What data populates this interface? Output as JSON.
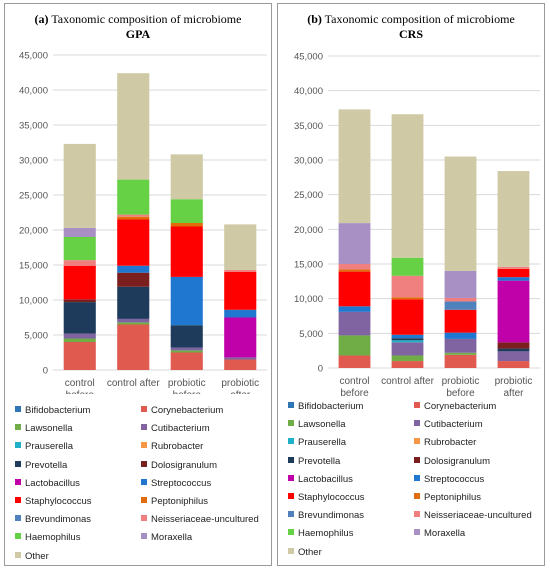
{
  "legend": [
    {
      "name": "Bifidobacterium",
      "color": "#2e75b6"
    },
    {
      "name": "Corynebacterium",
      "color": "#e05a4f"
    },
    {
      "name": "Lawsonella",
      "color": "#70ad47"
    },
    {
      "name": "Cutibacterium",
      "color": "#8064a2"
    },
    {
      "name": "Prauserella",
      "color": "#1fb0c9"
    },
    {
      "name": "Rubrobacter",
      "color": "#f79646"
    },
    {
      "name": "Prevotella",
      "color": "#1f3b5c"
    },
    {
      "name": "Dolosigranulum",
      "color": "#7b1e1e"
    },
    {
      "name": "Lactobacillus",
      "color": "#c000a8"
    },
    {
      "name": "Streptococcus",
      "color": "#1f77d0"
    },
    {
      "name": "Staphylococcus",
      "color": "#ff0000"
    },
    {
      "name": "Peptoniphilus",
      "color": "#e26b0a"
    },
    {
      "name": "Brevundimonas",
      "color": "#4f81bd"
    },
    {
      "name": "Neisseriaceae-uncultured",
      "color": "#f08080"
    },
    {
      "name": "Haemophilus",
      "color": "#66d144"
    },
    {
      "name": "Moraxella",
      "color": "#a990c4"
    },
    {
      "name": "Other",
      "color": "#cfc9a5"
    }
  ],
  "panels": [
    {
      "title_prefix": "(a)",
      "title_rest": " Taxonomic composition of microbiome",
      "subtitle": "GPA",
      "chart_data": {
        "type": "bar",
        "stacked": true,
        "categories": [
          [
            "control",
            "before"
          ],
          [
            "control after"
          ],
          [
            "probiotic",
            "before"
          ],
          [
            "probiotic",
            "after"
          ]
        ],
        "ylim": [
          0,
          45000
        ],
        "yticks": [
          "0",
          "5,000",
          "10,000",
          "15,000",
          "20,000",
          "25,000",
          "30,000",
          "35,000",
          "40,000",
          "45,000"
        ],
        "ytick_values": [
          0,
          5000,
          10000,
          15000,
          20000,
          25000,
          30000,
          35000,
          40000,
          45000
        ],
        "grid": true,
        "series": [
          {
            "name": "Bifidobacterium",
            "values": [
              0,
              0,
              0,
              0
            ]
          },
          {
            "name": "Corynebacterium",
            "values": [
              4000,
              6500,
              2500,
              1500
            ]
          },
          {
            "name": "Lawsonella",
            "values": [
              500,
              300,
              300,
              0
            ]
          },
          {
            "name": "Cutibacterium",
            "values": [
              700,
              500,
              400,
              300
            ]
          },
          {
            "name": "Prauserella",
            "values": [
              0,
              0,
              0,
              0
            ]
          },
          {
            "name": "Rubrobacter",
            "values": [
              0,
              0,
              0,
              0
            ]
          },
          {
            "name": "Prevotella",
            "values": [
              4500,
              4600,
              3200,
              0
            ]
          },
          {
            "name": "Dolosigranulum",
            "values": [
              400,
              2000,
              0,
              0
            ]
          },
          {
            "name": "Lactobacillus",
            "values": [
              0,
              0,
              0,
              5700
            ]
          },
          {
            "name": "Streptococcus",
            "values": [
              0,
              1000,
              6900,
              1100
            ]
          },
          {
            "name": "Staphylococcus",
            "values": [
              4800,
              6600,
              7200,
              5400
            ]
          },
          {
            "name": "Peptoniphilus",
            "values": [
              0,
              400,
              500,
              0
            ]
          },
          {
            "name": "Brevundimonas",
            "values": [
              0,
              0,
              0,
              0
            ]
          },
          {
            "name": "Neisseriaceae-uncultured",
            "values": [
              800,
              300,
              0,
              300
            ]
          },
          {
            "name": "Haemophilus",
            "values": [
              3300,
              5000,
              3400,
              0
            ]
          },
          {
            "name": "Moraxella",
            "values": [
              1300,
              0,
              0,
              0
            ]
          },
          {
            "name": "Other",
            "values": [
              12000,
              15200,
              6400,
              6500
            ]
          }
        ],
        "extra": [
          {
            "category": 3,
            "series": "Light pink base",
            "note": ""
          }
        ]
      }
    },
    {
      "title_prefix": "(b)",
      "title_rest": " Taxonomic composition of microbiome",
      "subtitle": "CRS",
      "chart_data": {
        "type": "bar",
        "stacked": true,
        "categories": [
          [
            "control",
            "before"
          ],
          [
            "control after"
          ],
          [
            "probiotic",
            "before"
          ],
          [
            "probiotic",
            "after"
          ]
        ],
        "ylim": [
          0,
          45000
        ],
        "yticks": [
          "0",
          "5,000",
          "10,000",
          "15,000",
          "20,000",
          "25,000",
          "30,000",
          "35,000",
          "40,000",
          "45,000"
        ],
        "ytick_values": [
          0,
          5000,
          10000,
          15000,
          20000,
          25000,
          30000,
          35000,
          40000,
          45000
        ],
        "grid": true,
        "series": [
          {
            "name": "Bifidobacterium",
            "values": [
              0,
              0,
              0,
              0
            ]
          },
          {
            "name": "Corynebacterium",
            "values": [
              1800,
              1000,
              1900,
              1000
            ]
          },
          {
            "name": "Lawsonella",
            "values": [
              2900,
              800,
              300,
              0
            ]
          },
          {
            "name": "Cutibacterium",
            "values": [
              3400,
              1900,
              2000,
              1400
            ]
          },
          {
            "name": "Prauserella",
            "values": [
              0,
              300,
              0,
              0
            ]
          },
          {
            "name": "Rubrobacter",
            "values": [
              0,
              0,
              0,
              0
            ]
          },
          {
            "name": "Prevotella",
            "values": [
              0,
              300,
              0,
              400
            ]
          },
          {
            "name": "Dolosigranulum",
            "values": [
              0,
              0,
              0,
              900
            ]
          },
          {
            "name": "Lactobacillus",
            "values": [
              0,
              0,
              0,
              8900
            ]
          },
          {
            "name": "Streptococcus",
            "values": [
              800,
              500,
              900,
              500
            ]
          },
          {
            "name": "Staphylococcus",
            "values": [
              5000,
              5100,
              3300,
              1200
            ]
          },
          {
            "name": "Peptoniphilus",
            "values": [
              300,
              300,
              0,
              0
            ]
          },
          {
            "name": "Brevundimonas",
            "values": [
              0,
              0,
              1200,
              0
            ]
          },
          {
            "name": "Neisseriaceae-uncultured",
            "values": [
              800,
              3100,
              500,
              300
            ]
          },
          {
            "name": "Haemophilus",
            "values": [
              0,
              2600,
              0,
              0
            ]
          },
          {
            "name": "Moraxella",
            "values": [
              5900,
              0,
              3900,
              0
            ]
          },
          {
            "name": "Other",
            "values": [
              16400,
              20700,
              16500,
              13800
            ]
          }
        ]
      }
    }
  ]
}
